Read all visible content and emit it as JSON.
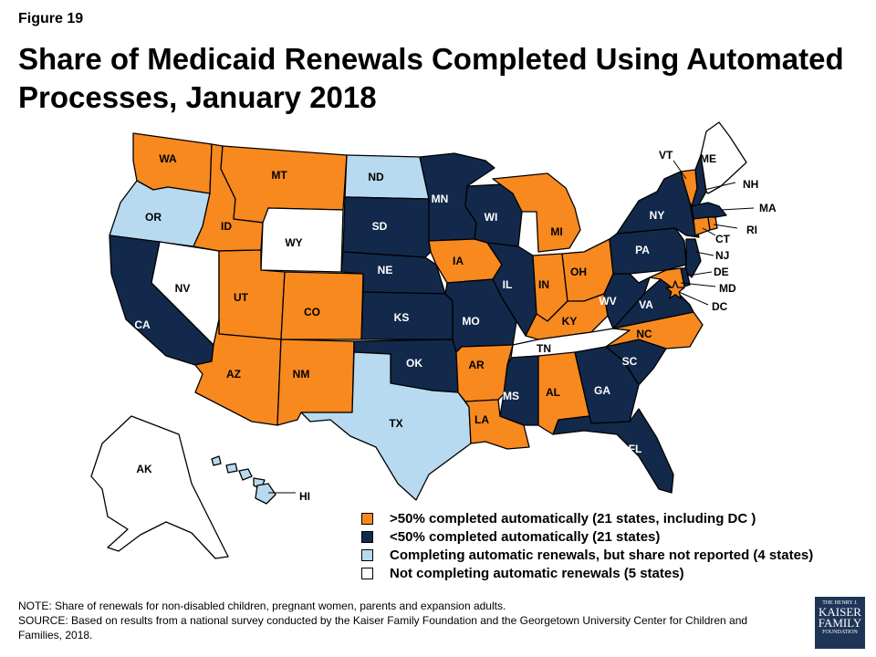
{
  "figure_label": "Figure 19",
  "title": "Share of Medicaid Renewals Completed Using Automated Processes, January 2018",
  "colors": {
    "auto_over_50": "#f7891f",
    "auto_under_50": "#12294b",
    "not_reported": "#b8daf0",
    "not_completing": "#ffffff",
    "border": "#000000"
  },
  "legend": [
    {
      "label": ">50% completed automatically (21 states, including DC )",
      "color": "#f7891f"
    },
    {
      "label": "<50% completed automatically (21 states)",
      "color": "#12294b"
    },
    {
      "label": "Completing automatic renewals, but share not reported (4 states)",
      "color": "#b8daf0"
    },
    {
      "label": "Not completing automatic renewals (5 states)",
      "color": "#ffffff"
    }
  ],
  "states": {
    "WA": {
      "label": "WA",
      "category": "auto_over_50"
    },
    "OR": {
      "label": "OR",
      "category": "not_reported"
    },
    "CA": {
      "label": "CA",
      "category": "auto_under_50"
    },
    "NV": {
      "label": "NV",
      "category": "not_completing"
    },
    "ID": {
      "label": "ID",
      "category": "auto_over_50"
    },
    "MT": {
      "label": "MT",
      "category": "auto_over_50"
    },
    "WY": {
      "label": "WY",
      "category": "not_completing"
    },
    "UT": {
      "label": "UT",
      "category": "auto_over_50"
    },
    "AZ": {
      "label": "AZ",
      "category": "auto_over_50"
    },
    "CO": {
      "label": "CO",
      "category": "auto_over_50"
    },
    "NM": {
      "label": "NM",
      "category": "auto_over_50"
    },
    "ND": {
      "label": "ND",
      "category": "not_reported"
    },
    "SD": {
      "label": "SD",
      "category": "auto_under_50"
    },
    "NE": {
      "label": "NE",
      "category": "auto_under_50"
    },
    "KS": {
      "label": "KS",
      "category": "auto_under_50"
    },
    "OK": {
      "label": "OK",
      "category": "auto_under_50"
    },
    "TX": {
      "label": "TX",
      "category": "not_reported"
    },
    "MN": {
      "label": "MN",
      "category": "auto_under_50"
    },
    "IA": {
      "label": "IA",
      "category": "auto_over_50"
    },
    "MO": {
      "label": "MO",
      "category": "auto_under_50"
    },
    "AR": {
      "label": "AR",
      "category": "auto_over_50"
    },
    "LA": {
      "label": "LA",
      "category": "auto_over_50"
    },
    "WI": {
      "label": "WI",
      "category": "auto_under_50"
    },
    "IL": {
      "label": "IL",
      "category": "auto_under_50"
    },
    "MI": {
      "label": "MI",
      "category": "auto_over_50"
    },
    "IN": {
      "label": "IN",
      "category": "auto_over_50"
    },
    "OH": {
      "label": "OH",
      "category": "auto_over_50"
    },
    "KY": {
      "label": "KY",
      "category": "auto_over_50"
    },
    "TN": {
      "label": "TN",
      "category": "not_completing"
    },
    "MS": {
      "label": "MS",
      "category": "auto_under_50"
    },
    "AL": {
      "label": "AL",
      "category": "auto_over_50"
    },
    "GA": {
      "label": "GA",
      "category": "auto_under_50"
    },
    "FL": {
      "label": "FL",
      "category": "auto_under_50"
    },
    "SC": {
      "label": "SC",
      "category": "auto_under_50"
    },
    "NC": {
      "label": "NC",
      "category": "auto_over_50"
    },
    "VA": {
      "label": "VA",
      "category": "auto_under_50"
    },
    "WV": {
      "label": "WV",
      "category": "auto_under_50"
    },
    "PA": {
      "label": "PA",
      "category": "auto_under_50"
    },
    "NY": {
      "label": "NY",
      "category": "auto_under_50"
    },
    "NJ": {
      "label": "NJ",
      "category": "auto_under_50"
    },
    "DE": {
      "label": "DE",
      "category": "auto_under_50"
    },
    "MD": {
      "label": "MD",
      "category": "auto_over_50"
    },
    "DC": {
      "label": "DC",
      "category": "auto_over_50"
    },
    "VT": {
      "label": "VT",
      "category": "auto_over_50"
    },
    "NH": {
      "label": "NH",
      "category": "auto_under_50"
    },
    "ME": {
      "label": "ME",
      "category": "not_completing"
    },
    "MA": {
      "label": "MA",
      "category": "auto_under_50"
    },
    "CT": {
      "label": "CT",
      "category": "auto_over_50"
    },
    "RI": {
      "label": "RI",
      "category": "auto_over_50"
    },
    "AK": {
      "label": "AK",
      "category": "not_completing"
    },
    "HI": {
      "label": "HI",
      "category": "not_reported"
    }
  },
  "note": "NOTE: Share of renewals for non-disabled children, pregnant women, parents and expansion adults.",
  "source": "SOURCE: Based on results from a national survey conducted by the Kaiser Family Foundation and the Georgetown University Center for Children and Families, 2018.",
  "logo": {
    "line1": "THE HENRY J.",
    "line2": "KAISER",
    "line3": "FAMILY",
    "line4": "FOUNDATION"
  }
}
